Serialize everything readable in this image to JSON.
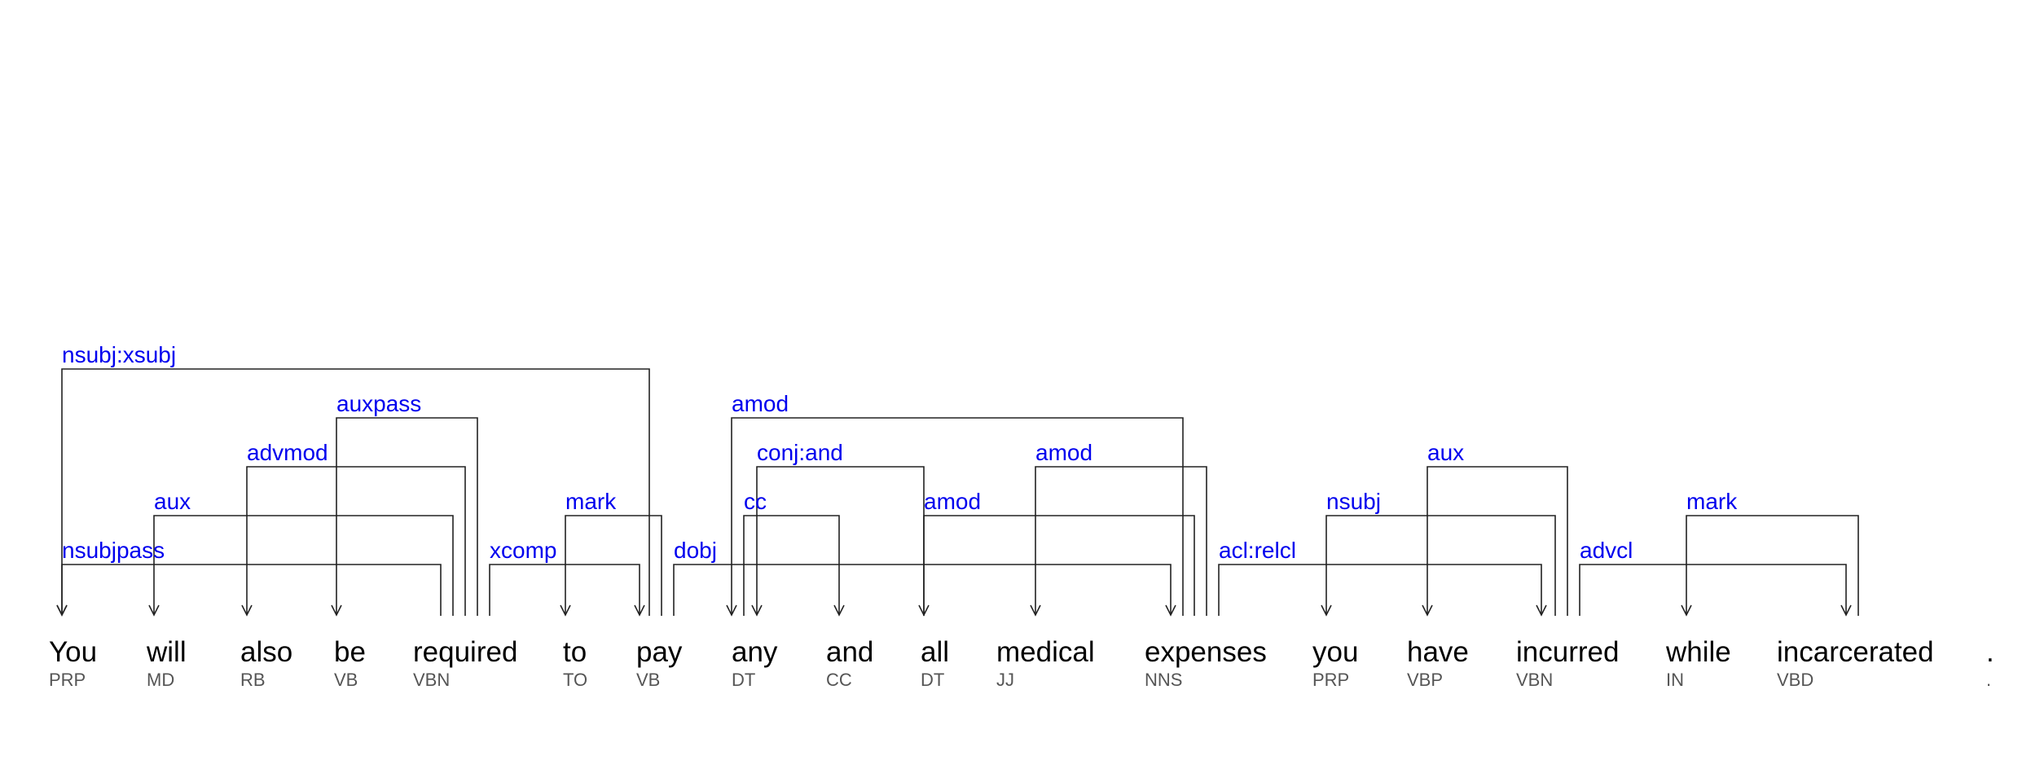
{
  "tokens": [
    {
      "word": "You",
      "tag": "PRP"
    },
    {
      "word": "will",
      "tag": "MD"
    },
    {
      "word": "also",
      "tag": "RB"
    },
    {
      "word": "be",
      "tag": "VB"
    },
    {
      "word": "required",
      "tag": "VBN"
    },
    {
      "word": "to",
      "tag": "TO"
    },
    {
      "word": "pay",
      "tag": "VB"
    },
    {
      "word": "any",
      "tag": "DT"
    },
    {
      "word": "and",
      "tag": "CC"
    },
    {
      "word": "all",
      "tag": "DT"
    },
    {
      "word": "medical",
      "tag": "JJ"
    },
    {
      "word": "expenses",
      "tag": "NNS"
    },
    {
      "word": "you",
      "tag": "PRP"
    },
    {
      "word": "have",
      "tag": "VBP"
    },
    {
      "word": "incurred",
      "tag": "VBN"
    },
    {
      "word": "while",
      "tag": "IN"
    },
    {
      "word": "incarcerated",
      "tag": "VBD"
    },
    {
      "word": ".",
      "tag": "."
    }
  ],
  "dependencies": [
    {
      "label": "nsubj:xsubj",
      "head": 6,
      "dep": 0
    },
    {
      "label": "auxpass",
      "head": 4,
      "dep": 3
    },
    {
      "label": "advmod",
      "head": 4,
      "dep": 2
    },
    {
      "label": "aux",
      "head": 4,
      "dep": 1
    },
    {
      "label": "nsubjpass",
      "head": 4,
      "dep": 0
    },
    {
      "label": "xcomp",
      "head": 4,
      "dep": 6
    },
    {
      "label": "mark",
      "head": 6,
      "dep": 5
    },
    {
      "label": "dobj",
      "head": 6,
      "dep": 11
    },
    {
      "label": "amod",
      "head": 11,
      "dep": 7
    },
    {
      "label": "conj:and",
      "head": 9,
      "dep": 7
    },
    {
      "label": "cc",
      "head": 7,
      "dep": 8
    },
    {
      "label": "amod",
      "head": 11,
      "dep": 9
    },
    {
      "label": "amod",
      "head": 11,
      "dep": 10
    },
    {
      "label": "acl:relcl",
      "head": 11,
      "dep": 14
    },
    {
      "label": "nsubj",
      "head": 14,
      "dep": 12
    },
    {
      "label": "aux",
      "head": 14,
      "dep": 13
    },
    {
      "label": "advcl",
      "head": 14,
      "dep": 16
    },
    {
      "label": "mark",
      "head": 16,
      "dep": 15
    }
  ],
  "colors": {
    "label": "#0000ee",
    "line": "#222222",
    "word": "#000000",
    "tag": "#555555"
  }
}
